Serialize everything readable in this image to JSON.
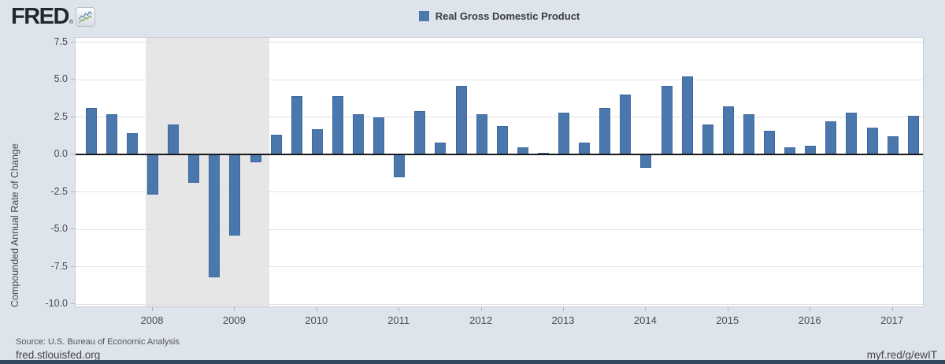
{
  "header": {
    "logo_text": "FRED",
    "registered_mark": "®",
    "legend": {
      "swatch_color": "#4a78ad",
      "label": "Real Gross Domestic Product"
    }
  },
  "chart_data": {
    "type": "bar",
    "title": "Real Gross Domestic Product",
    "ylabel": "Compounded Annual Rate of Change",
    "ylim": [
      -10.0,
      7.5
    ],
    "yticks": [
      7.5,
      5.0,
      2.5,
      0.0,
      -2.5,
      -5.0,
      -7.5,
      -10.0
    ],
    "grid": true,
    "legend_position": "top-center",
    "bar_color": "#4a78ad",
    "bar_edge_color": "#3d689e",
    "recession_shading": {
      "color": "#e6e6e6",
      "start": "2007-12",
      "end": "2009-06",
      "quarter_span": [
        2.667,
        8.667
      ]
    },
    "categories": [
      "2007 Q2",
      "2007 Q3",
      "2007 Q4",
      "2008 Q1",
      "2008 Q2",
      "2008 Q3",
      "2008 Q4",
      "2009 Q1",
      "2009 Q2",
      "2009 Q3",
      "2009 Q4",
      "2010 Q1",
      "2010 Q2",
      "2010 Q3",
      "2010 Q4",
      "2011 Q1",
      "2011 Q2",
      "2011 Q3",
      "2011 Q4",
      "2012 Q1",
      "2012 Q2",
      "2012 Q3",
      "2012 Q4",
      "2013 Q1",
      "2013 Q2",
      "2013 Q3",
      "2013 Q4",
      "2014 Q1",
      "2014 Q2",
      "2014 Q3",
      "2014 Q4",
      "2015 Q1",
      "2015 Q2",
      "2015 Q3",
      "2015 Q4",
      "2016 Q1",
      "2016 Q2",
      "2016 Q3",
      "2016 Q4",
      "2017 Q1",
      "2017 Q2"
    ],
    "values": [
      3.1,
      2.7,
      1.4,
      -2.7,
      2.0,
      -1.9,
      -8.2,
      -5.4,
      -0.5,
      1.3,
      3.9,
      1.7,
      3.9,
      2.7,
      2.5,
      -1.5,
      2.9,
      0.8,
      4.6,
      2.7,
      1.9,
      0.5,
      0.1,
      2.8,
      0.8,
      3.1,
      4.0,
      -0.9,
      4.6,
      5.2,
      2.0,
      3.2,
      2.7,
      1.6,
      0.5,
      0.6,
      2.2,
      2.8,
      1.8,
      1.2,
      2.6
    ],
    "x_year_labels": [
      "2008",
      "2009",
      "2010",
      "2011",
      "2012",
      "2013",
      "2014",
      "2015",
      "2016",
      "2017"
    ]
  },
  "footer": {
    "source": "Source: U.S. Bureau of Economic Analysis",
    "site_link": "fred.stlouisfed.org",
    "short_link": "myf.red/g/ewIT"
  }
}
